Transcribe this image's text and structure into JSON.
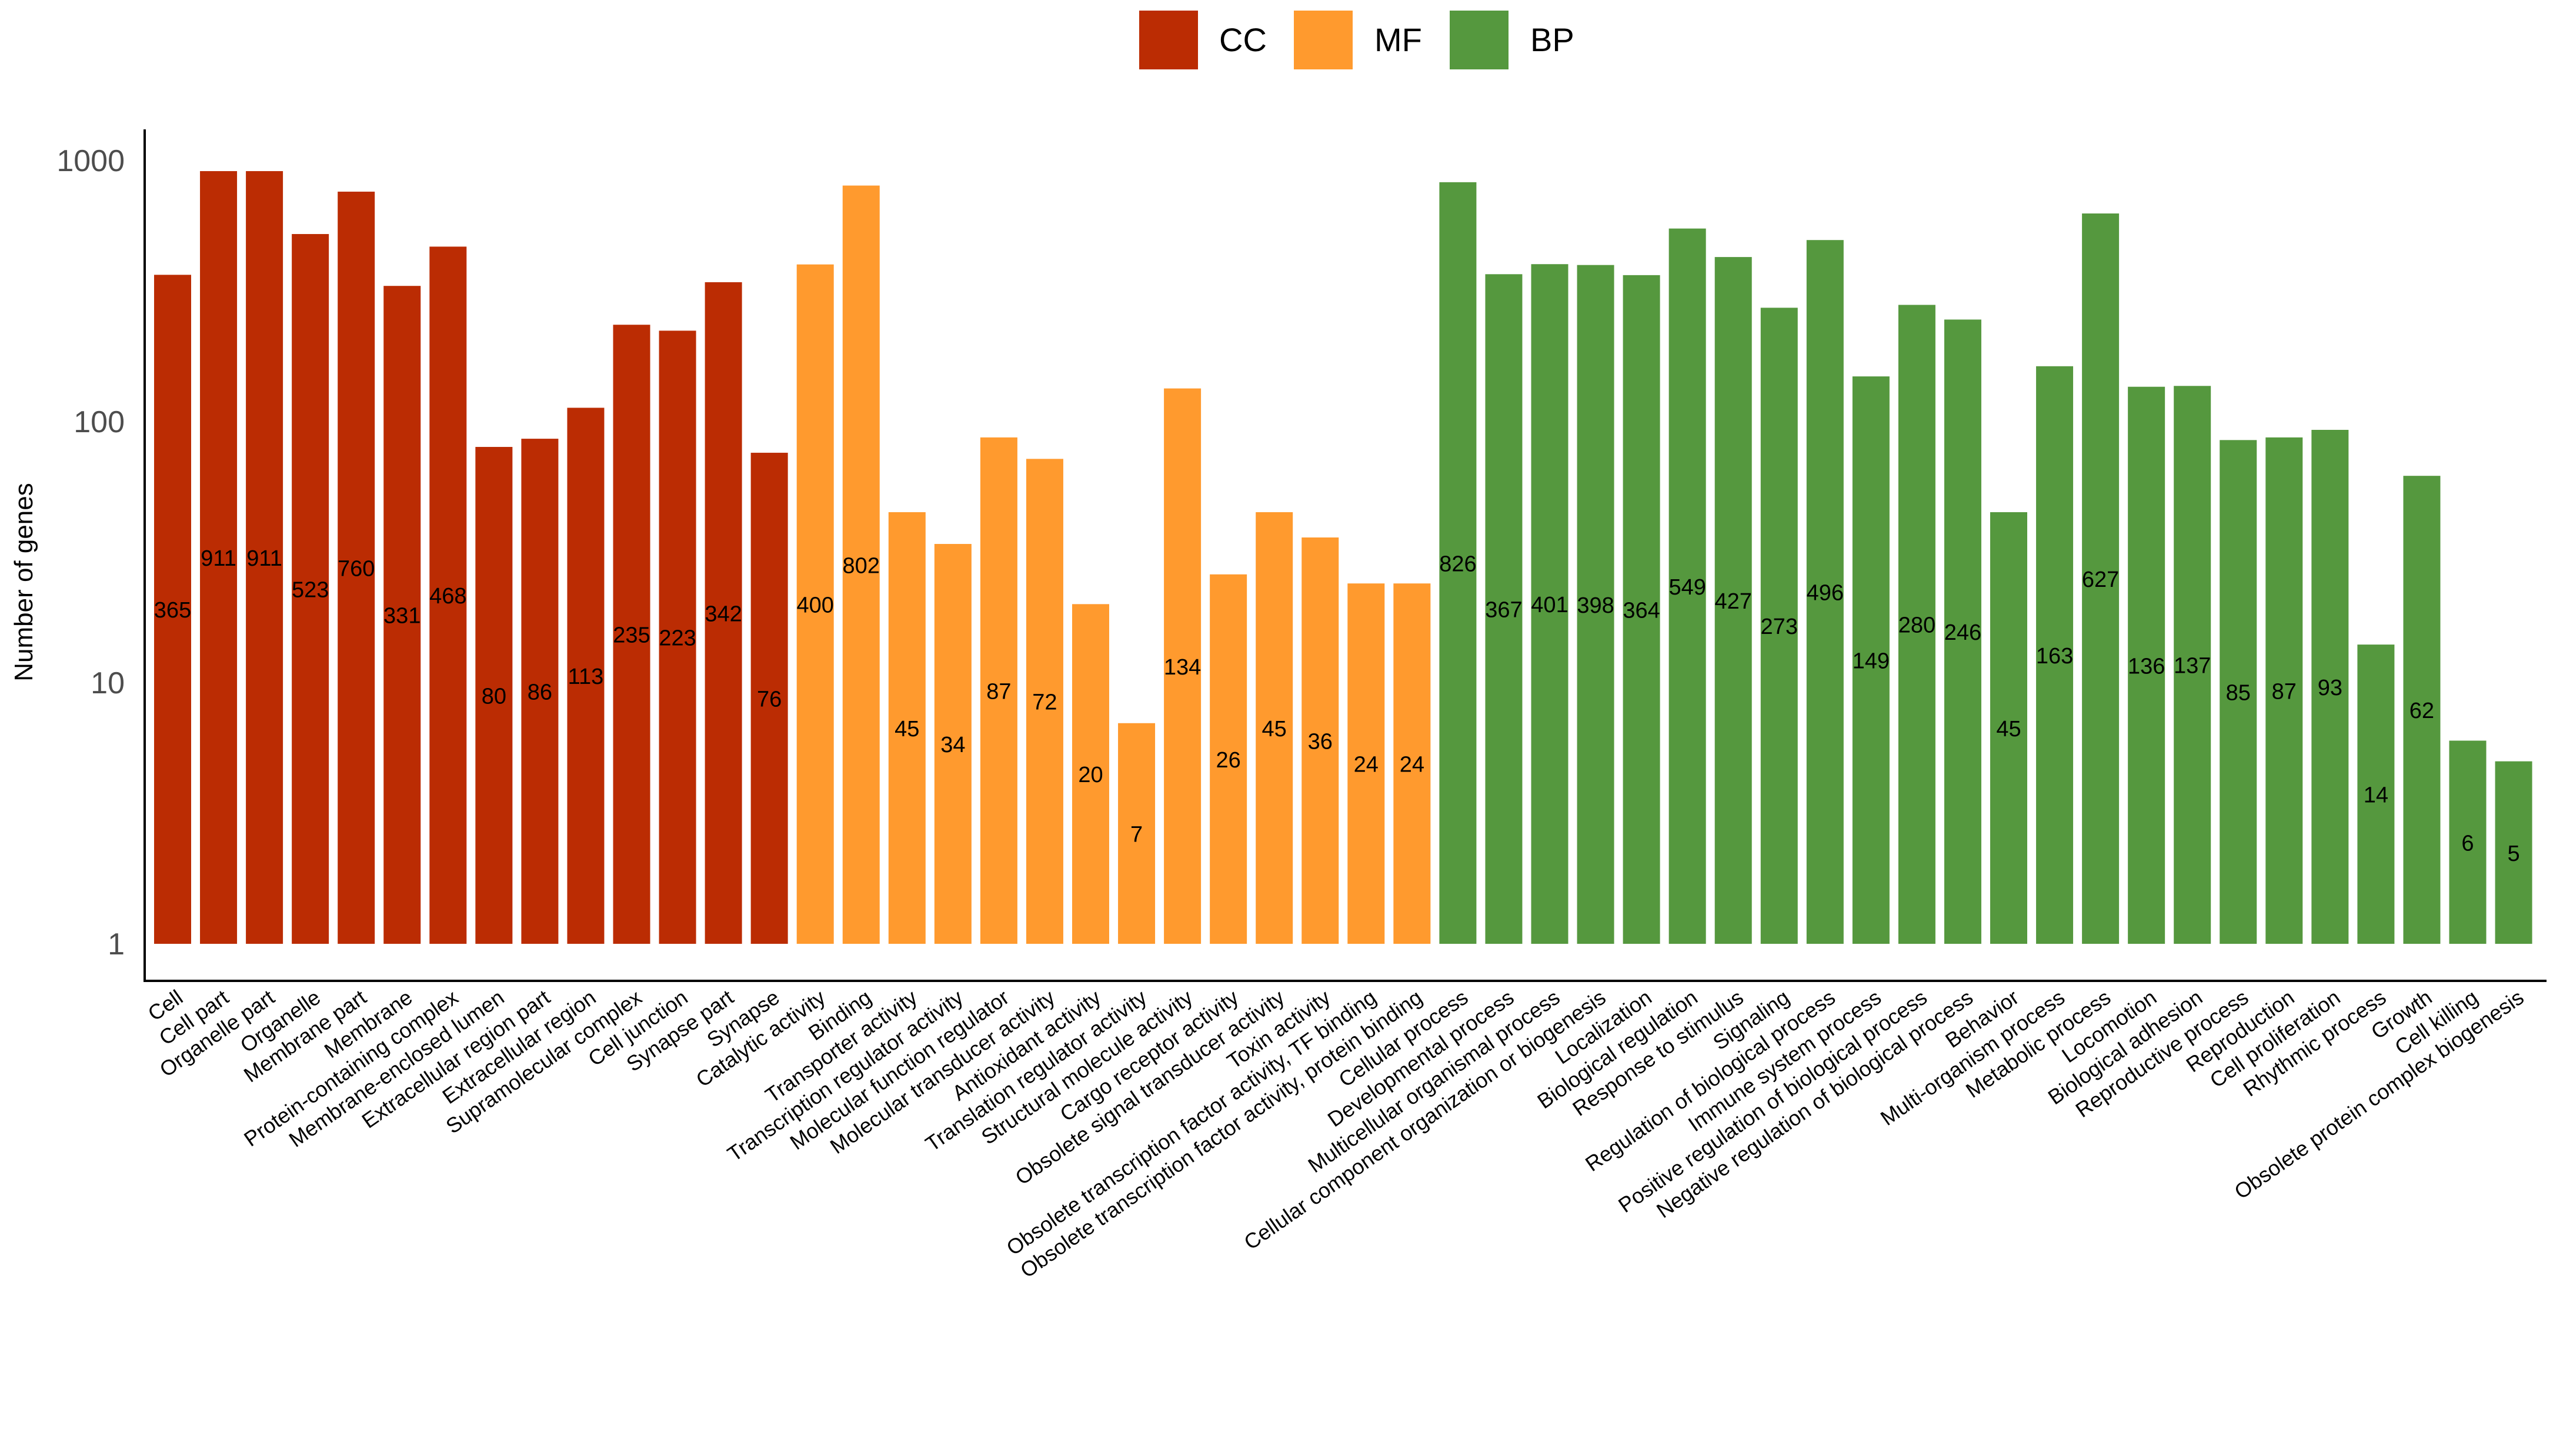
{
  "chart_data": {
    "type": "bar",
    "scale": "log10",
    "title": "",
    "xlabel": "",
    "ylabel": "Number of genes",
    "ylim": [
      1,
      1000
    ],
    "yticks": [
      "1",
      "10",
      "100",
      "1000"
    ],
    "legend": {
      "placement": "top-center",
      "entries": [
        {
          "label": "CC",
          "color": "#BB2C03"
        },
        {
          "label": "MF",
          "color": "#FF9A2E"
        },
        {
          "label": "BP",
          "color": "#55983E"
        }
      ]
    },
    "categories": [
      "Cell",
      "Cell part",
      "Organelle part",
      "Organelle",
      "Membrane part",
      "Membrane",
      "Protein-containing complex",
      "Membrane-enclosed lumen",
      "Extracellular region part",
      "Extracellular region",
      "Supramolecular complex",
      "Cell junction",
      "Synapse part",
      "Synapse",
      "Catalytic activity",
      "Binding",
      "Transporter activity",
      "Transcription regulator activity",
      "Molecular function regulator",
      "Molecular transducer activity",
      "Antioxidant activity",
      "Translation regulator activity",
      "Structural molecule activity",
      "Cargo receptor activity",
      "Obsolete signal transducer activity",
      "Toxin activity",
      "Obsolete transcription factor activity, TF binding",
      "Obsolete transcription factor activity, protein binding",
      "Cellular process",
      "Developmental process",
      "Multicellular organismal process",
      "Cellular component organization or biogenesis",
      "Localization",
      "Biological regulation",
      "Response to stimulus",
      "Signaling",
      "Regulation of biological process",
      "Immune system process",
      "Positive regulation of biological process",
      "Negative regulation of biological process",
      "Behavior",
      "Multi-organism process",
      "Metabolic process",
      "Locomotion",
      "Biological adhesion",
      "Reproductive process",
      "Reproduction",
      "Cell proliferation",
      "Rhythmic process",
      "Growth",
      "Cell killing",
      "Obsolete protein complex biogenesis"
    ],
    "groups": [
      "CC",
      "CC",
      "CC",
      "CC",
      "CC",
      "CC",
      "CC",
      "CC",
      "CC",
      "CC",
      "CC",
      "CC",
      "CC",
      "CC",
      "MF",
      "MF",
      "MF",
      "MF",
      "MF",
      "MF",
      "MF",
      "MF",
      "MF",
      "MF",
      "MF",
      "MF",
      "MF",
      "MF",
      "BP",
      "BP",
      "BP",
      "BP",
      "BP",
      "BP",
      "BP",
      "BP",
      "BP",
      "BP",
      "BP",
      "BP",
      "BP",
      "BP",
      "BP",
      "BP",
      "BP",
      "BP",
      "BP",
      "BP",
      "BP",
      "BP",
      "BP",
      "BP"
    ],
    "values": [
      365,
      911,
      911,
      523,
      760,
      331,
      468,
      80,
      86,
      113,
      235,
      223,
      342,
      76,
      400,
      802,
      45,
      34,
      87,
      72,
      20,
      7,
      134,
      26,
      45,
      36,
      24,
      24,
      826,
      367,
      401,
      398,
      364,
      549,
      427,
      273,
      496,
      149,
      280,
      246,
      45,
      163,
      627,
      136,
      137,
      85,
      87,
      93,
      14,
      62,
      6,
      5
    ]
  }
}
